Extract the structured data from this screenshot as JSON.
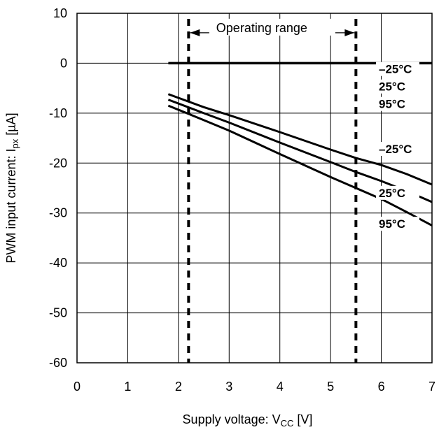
{
  "chart_data": {
    "type": "line",
    "title": "",
    "xlabel": {
      "main": "Supply voltage: V",
      "sub": "CC",
      "unit": " [V]"
    },
    "ylabel": {
      "main": "PWM input current: I",
      "sub": "px",
      "unit": " [µA]"
    },
    "xlim": [
      0,
      7
    ],
    "ylim": [
      -60,
      10
    ],
    "x_ticks": [
      "0",
      "1",
      "2",
      "3",
      "4",
      "5",
      "6",
      "7"
    ],
    "y_ticks": [
      "10",
      "0",
      "-10",
      "-20",
      "-30",
      "-40",
      "-50",
      "-60"
    ],
    "grid": true,
    "series": [
      {
        "group": "high-level",
        "x": [
          1.8,
          7.0
        ],
        "y": [
          0,
          0
        ]
      },
      {
        "group": "low-level",
        "x": [
          1.8,
          2.5,
          3.0,
          4.0,
          5.0,
          5.5,
          6.0,
          6.5,
          7.0
        ],
        "y": [
          -6.2,
          -8.8,
          -10.4,
          -13.8,
          -17.3,
          -19.0,
          -20.4,
          -22.2,
          -24.3
        ]
      },
      {
        "group": "low-level",
        "x": [
          1.8,
          2.5,
          3.0,
          4.0,
          5.0,
          5.5,
          6.0,
          6.5,
          7.0
        ],
        "y": [
          -7.3,
          -10.0,
          -11.9,
          -15.9,
          -19.8,
          -21.8,
          -23.6,
          -25.6,
          -27.8
        ]
      },
      {
        "group": "low-level",
        "x": [
          1.8,
          2.5,
          3.0,
          4.0,
          5.0,
          5.5,
          6.0,
          6.5,
          7.0
        ],
        "y": [
          -8.5,
          -11.4,
          -13.5,
          -18.2,
          -22.8,
          -25.0,
          -27.2,
          -29.8,
          -32.5
        ]
      }
    ],
    "labels": {
      "top": [
        "–25°C",
        "25°C",
        "95°C"
      ],
      "bottom": [
        "–25°C",
        "25°C",
        "95°C"
      ]
    },
    "operating_range": {
      "label": "Operating range",
      "x": [
        2.2,
        5.5
      ]
    }
  }
}
